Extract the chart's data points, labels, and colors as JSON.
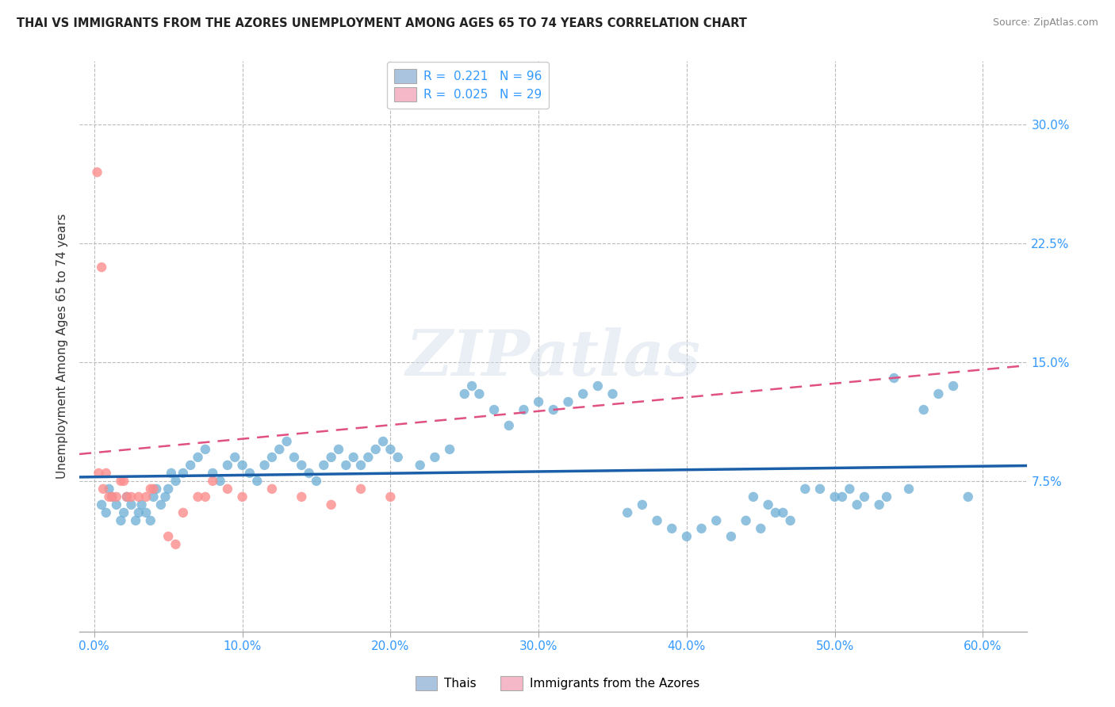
{
  "title": "THAI VS IMMIGRANTS FROM THE AZORES UNEMPLOYMENT AMONG AGES 65 TO 74 YEARS CORRELATION CHART",
  "source": "Source: ZipAtlas.com",
  "ylabel": "Unemployment Among Ages 65 to 74 years",
  "x_ticks": [
    0.0,
    0.1,
    0.2,
    0.3,
    0.4,
    0.5,
    0.6
  ],
  "x_tick_labels": [
    "0.0%",
    "10.0%",
    "20.0%",
    "30.0%",
    "40.0%",
    "50.0%",
    "60.0%"
  ],
  "y_ticks": [
    0.075,
    0.15,
    0.225,
    0.3
  ],
  "y_tick_labels": [
    "7.5%",
    "15.0%",
    "22.5%",
    "30.0%"
  ],
  "xlim": [
    -0.01,
    0.63
  ],
  "ylim": [
    -0.02,
    0.34
  ],
  "blue_color": "#6baed6",
  "pink_color": "#fc8d8d",
  "blue_line_color": "#1a5fa8",
  "pink_line_color": "#e05080",
  "grid_color": "#bbbbbb",
  "background_color": "#ffffff",
  "title_color": "#222222",
  "axis_label_color": "#333333",
  "tick_label_color": "#3399ff",
  "watermark_text": "ZIPatlas",
  "blue_scatter_x": [
    0.005,
    0.008,
    0.01,
    0.012,
    0.015,
    0.018,
    0.02,
    0.022,
    0.025,
    0.028,
    0.03,
    0.032,
    0.035,
    0.038,
    0.04,
    0.042,
    0.045,
    0.048,
    0.05,
    0.052,
    0.055,
    0.06,
    0.065,
    0.07,
    0.075,
    0.08,
    0.085,
    0.09,
    0.095,
    0.1,
    0.105,
    0.11,
    0.115,
    0.12,
    0.125,
    0.13,
    0.135,
    0.14,
    0.145,
    0.15,
    0.155,
    0.16,
    0.165,
    0.17,
    0.175,
    0.18,
    0.185,
    0.19,
    0.195,
    0.2,
    0.205,
    0.22,
    0.23,
    0.24,
    0.25,
    0.255,
    0.26,
    0.27,
    0.28,
    0.29,
    0.3,
    0.31,
    0.32,
    0.33,
    0.34,
    0.35,
    0.36,
    0.37,
    0.38,
    0.39,
    0.4,
    0.41,
    0.42,
    0.43,
    0.44,
    0.45,
    0.46,
    0.47,
    0.5,
    0.51,
    0.52,
    0.53,
    0.54,
    0.55,
    0.56,
    0.57,
    0.58,
    0.59,
    0.445,
    0.455,
    0.465,
    0.48,
    0.49,
    0.505,
    0.515,
    0.535
  ],
  "blue_scatter_y": [
    0.06,
    0.055,
    0.07,
    0.065,
    0.06,
    0.05,
    0.055,
    0.065,
    0.06,
    0.05,
    0.055,
    0.06,
    0.055,
    0.05,
    0.065,
    0.07,
    0.06,
    0.065,
    0.07,
    0.08,
    0.075,
    0.08,
    0.085,
    0.09,
    0.095,
    0.08,
    0.075,
    0.085,
    0.09,
    0.085,
    0.08,
    0.075,
    0.085,
    0.09,
    0.095,
    0.1,
    0.09,
    0.085,
    0.08,
    0.075,
    0.085,
    0.09,
    0.095,
    0.085,
    0.09,
    0.085,
    0.09,
    0.095,
    0.1,
    0.095,
    0.09,
    0.085,
    0.09,
    0.095,
    0.13,
    0.135,
    0.13,
    0.12,
    0.11,
    0.12,
    0.125,
    0.12,
    0.125,
    0.13,
    0.135,
    0.13,
    0.055,
    0.06,
    0.05,
    0.045,
    0.04,
    0.045,
    0.05,
    0.04,
    0.05,
    0.045,
    0.055,
    0.05,
    0.065,
    0.07,
    0.065,
    0.06,
    0.14,
    0.07,
    0.12,
    0.13,
    0.135,
    0.065,
    0.065,
    0.06,
    0.055,
    0.07,
    0.07,
    0.065,
    0.06,
    0.065
  ],
  "pink_scatter_x": [
    0.002,
    0.005,
    0.008,
    0.01,
    0.015,
    0.02,
    0.025,
    0.03,
    0.035,
    0.04,
    0.05,
    0.06,
    0.07,
    0.08,
    0.09,
    0.1,
    0.12,
    0.14,
    0.16,
    0.18,
    0.2,
    0.003,
    0.006,
    0.012,
    0.018,
    0.022,
    0.038,
    0.055,
    0.075
  ],
  "pink_scatter_y": [
    0.27,
    0.21,
    0.08,
    0.065,
    0.065,
    0.075,
    0.065,
    0.065,
    0.065,
    0.07,
    0.04,
    0.055,
    0.065,
    0.075,
    0.07,
    0.065,
    0.07,
    0.065,
    0.06,
    0.07,
    0.065,
    0.08,
    0.07,
    0.065,
    0.075,
    0.065,
    0.07,
    0.035,
    0.065
  ],
  "legend_items": [
    {
      "label": "R =  0.221   N = 96",
      "color": "#aac4e0"
    },
    {
      "label": "R =  0.025   N = 29",
      "color": "#f5b8c8"
    }
  ],
  "bottom_legend_items": [
    {
      "label": "Thais",
      "color": "#aac4e0"
    },
    {
      "label": "Immigrants from the Azores",
      "color": "#f5b8c8"
    }
  ]
}
